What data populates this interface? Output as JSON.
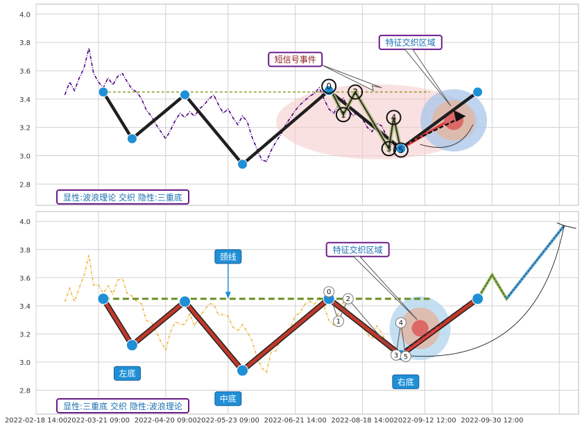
{
  "chart_data": [
    {
      "type": "line",
      "panel": "top",
      "ylim": [
        2.65,
        4.07
      ],
      "yticks": [
        2.8,
        3.0,
        3.2,
        3.4,
        3.6,
        3.8,
        4.0
      ],
      "yticklabels": [
        "2.8",
        "3.0",
        "3.2",
        "3.4",
        "3.6",
        "3.8",
        "4.0"
      ],
      "grid": true,
      "price_color": "#4B0082",
      "price_series": [
        [
          0,
          3.43
        ],
        [
          1,
          3.52
        ],
        [
          2,
          3.46
        ],
        [
          3,
          3.55
        ],
        [
          4,
          3.62
        ],
        [
          5,
          3.76
        ],
        [
          6,
          3.58
        ],
        [
          7,
          3.52
        ],
        [
          8,
          3.48
        ],
        [
          9,
          3.55
        ],
        [
          10,
          3.5
        ],
        [
          11,
          3.56
        ],
        [
          12,
          3.58
        ],
        [
          13,
          3.52
        ],
        [
          14,
          3.47
        ],
        [
          15,
          3.45
        ],
        [
          16,
          3.4
        ],
        [
          17,
          3.32
        ],
        [
          18,
          3.28
        ],
        [
          19,
          3.22
        ],
        [
          20,
          3.17
        ],
        [
          21,
          3.12
        ],
        [
          22,
          3.18
        ],
        [
          23,
          3.25
        ],
        [
          24,
          3.3
        ],
        [
          25,
          3.27
        ],
        [
          26,
          3.31
        ],
        [
          27,
          3.28
        ],
        [
          28,
          3.33
        ],
        [
          29,
          3.36
        ],
        [
          30,
          3.4
        ],
        [
          31,
          3.43
        ],
        [
          32,
          3.36
        ],
        [
          33,
          3.3
        ],
        [
          34,
          3.33
        ],
        [
          35,
          3.27
        ],
        [
          36,
          3.22
        ],
        [
          37,
          3.28
        ],
        [
          38,
          3.24
        ],
        [
          39,
          3.13
        ],
        [
          40,
          3.05
        ],
        [
          41,
          2.97
        ],
        [
          42,
          2.96
        ],
        [
          43,
          3.04
        ],
        [
          44,
          3.1
        ],
        [
          45,
          3.15
        ],
        [
          46,
          3.22
        ],
        [
          47,
          3.27
        ],
        [
          48,
          3.32
        ],
        [
          49,
          3.36
        ],
        [
          50,
          3.39
        ],
        [
          51,
          3.42
        ],
        [
          52,
          3.44
        ],
        [
          53,
          3.48
        ],
        [
          54,
          3.4
        ],
        [
          55,
          3.33
        ],
        [
          56,
          3.3
        ],
        [
          57,
          3.36
        ],
        [
          58,
          3.41
        ],
        [
          59,
          3.33
        ],
        [
          60,
          3.28
        ],
        [
          61,
          3.31
        ],
        [
          62,
          3.26
        ],
        [
          63,
          3.2
        ],
        [
          64,
          3.17
        ],
        [
          65,
          3.23
        ],
        [
          66,
          3.21
        ],
        [
          67,
          3.14
        ],
        [
          68,
          3.08
        ],
        [
          69,
          3.06
        ]
      ],
      "zigzag": [
        [
          8,
          3.45
        ],
        [
          14,
          3.12
        ],
        [
          25,
          3.43
        ],
        [
          37,
          2.94
        ],
        [
          55,
          3.46
        ],
        [
          70,
          3.05
        ],
        [
          86,
          3.45
        ]
      ],
      "zigzag_color": "#1f1f1f",
      "neckline": {
        "x": [
          8,
          76
        ],
        "y": 3.45,
        "color": "#8B9A2B"
      },
      "wave_circles": [
        {
          "label": "0",
          "x": 55,
          "y": 3.49
        },
        {
          "label": "1",
          "x": 58,
          "y": 3.29
        },
        {
          "label": "2",
          "x": 60.5,
          "y": 3.45
        },
        {
          "label": "3",
          "x": 67.5,
          "y": 3.05
        },
        {
          "label": "4",
          "x": 68.5,
          "y": 3.27
        },
        {
          "label": "5",
          "x": 70,
          "y": 3.04
        }
      ],
      "wave_path": [
        [
          55,
          3.49
        ],
        [
          58,
          3.29
        ],
        [
          60.5,
          3.45
        ],
        [
          67.5,
          3.05
        ],
        [
          68.5,
          3.27
        ],
        [
          70,
          3.04
        ]
      ],
      "annotations": [
        {
          "text": "短信号事件",
          "x": 48,
          "y": 3.68,
          "color": "#8B1A1A",
          "border": "#6a1a8a"
        },
        {
          "text": "特征交织区域",
          "x": 72,
          "y": 3.8,
          "color": "#1a6fb0",
          "border": "#6a1a8a"
        }
      ],
      "legend_text": "显性:波浪理论 交织 隐性:三重底"
    },
    {
      "type": "line",
      "panel": "bottom",
      "ylim": [
        2.63,
        4.07
      ],
      "yticks": [
        2.8,
        3.0,
        3.2,
        3.4,
        3.6,
        3.8,
        4.0
      ],
      "yticklabels": [
        "2.8",
        "3.0",
        "3.2",
        "3.4",
        "3.6",
        "3.8",
        "4.0"
      ],
      "grid": true,
      "price_color": "#E8B53A",
      "zigzag": [
        [
          8,
          3.45
        ],
        [
          14,
          3.12
        ],
        [
          25,
          3.43
        ],
        [
          37,
          2.94
        ],
        [
          55,
          3.45
        ],
        [
          70,
          3.05
        ],
        [
          86,
          3.45
        ]
      ],
      "zigzag_color": "#C0392B",
      "neckline": {
        "x": [
          8,
          76
        ],
        "y": 3.45,
        "color": "#6B8E23"
      },
      "projection": [
        [
          86,
          3.45
        ],
        [
          89,
          3.62
        ],
        [
          92,
          3.45
        ],
        [
          104,
          3.97
        ]
      ],
      "wave_circles": [
        {
          "label": "0",
          "x": 55,
          "y": 3.5
        },
        {
          "label": "1",
          "x": 57,
          "y": 3.29
        },
        {
          "label": "2",
          "x": 59,
          "y": 3.45
        },
        {
          "label": "3",
          "x": 69,
          "y": 3.05
        },
        {
          "label": "4",
          "x": 70,
          "y": 3.28
        },
        {
          "label": "5",
          "x": 71,
          "y": 3.04
        }
      ],
      "annotations": [
        {
          "text": "颈线",
          "x": 34,
          "y": 3.75,
          "color": "#ffffff",
          "bg": "#1f8fd6"
        },
        {
          "text": "左底",
          "x": 13,
          "y": 2.92,
          "color": "#ffffff",
          "bg": "#1f8fd6"
        },
        {
          "text": "中底",
          "x": 34,
          "y": 2.74,
          "color": "#ffffff",
          "bg": "#1f8fd6"
        },
        {
          "text": "右底",
          "x": 71,
          "y": 2.86,
          "color": "#ffffff",
          "bg": "#1f8fd6"
        },
        {
          "text": "特征交织区域",
          "x": 61,
          "y": 3.8,
          "color": "#1a6fb0",
          "border": "#6a1a8a"
        }
      ],
      "legend_text": "显性:三重底 交织 隐性:波浪理论"
    }
  ],
  "xaxis": {
    "range": [
      -6,
      107
    ],
    "ticks": [
      -6,
      7,
      21,
      34,
      48,
      62,
      75,
      89,
      103
    ],
    "tick_labels": [
      "2022-02-18 14:00",
      "2022-03-21 09:00",
      "2022-04-20 09:00",
      "2022-05-23 09:00",
      "2022-06-21 14:00",
      "2022-08-18 14:00",
      "2022-09-12 12:00",
      "2022-09-30 12:00",
      ""
    ]
  }
}
